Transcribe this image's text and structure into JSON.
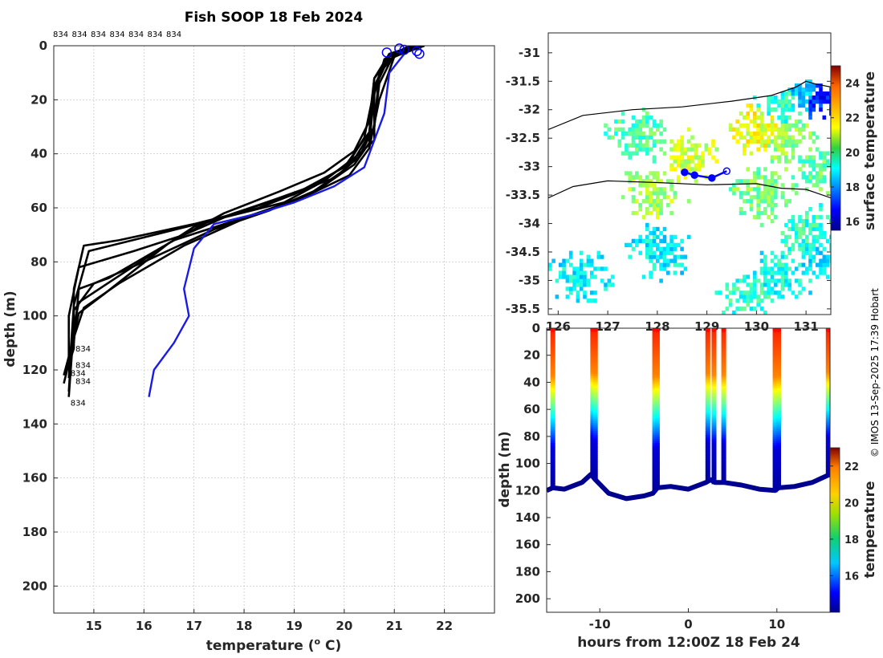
{
  "title": "Fish SOOP 18 Feb 2024",
  "credit": "© IMOS 13-Sep-2025 17:39 Hobart",
  "colors": {
    "profile": "#000000",
    "mean_profile": "#1a1ae6",
    "marker": "#0000ff"
  },
  "chart_data": [
    {
      "type": "line",
      "name": "temperature-profiles",
      "xlabel": "temperature (o C)",
      "xlabel_main": "temperature (",
      "xlabel_sup": "o",
      "xlabel_tail": " C)",
      "ylabel": "depth (m)",
      "xlim": [
        14.2,
        23.0
      ],
      "ylim": [
        210,
        0
      ],
      "xticks": [
        15,
        16,
        17,
        18,
        19,
        20,
        21,
        22
      ],
      "yticks": [
        0,
        20,
        40,
        60,
        80,
        100,
        120,
        140,
        160,
        180,
        200
      ],
      "grid": true,
      "top_labels": [
        "834",
        "834",
        "834",
        "834",
        "834",
        "834",
        "834"
      ],
      "bottom_labels": [
        {
          "text": "834",
          "temp": 14.6,
          "depth": 112
        },
        {
          "text": "834",
          "temp": 14.6,
          "depth": 118
        },
        {
          "text": "834",
          "temp": 14.5,
          "depth": 121
        },
        {
          "text": "834",
          "temp": 14.6,
          "depth": 124
        },
        {
          "text": "834",
          "temp": 14.5,
          "depth": 132
        }
      ],
      "surface_markers": [
        {
          "temp": 20.85,
          "depth": 2.5
        },
        {
          "temp": 21.1,
          "depth": 1
        },
        {
          "temp": 21.2,
          "depth": 1.5
        },
        {
          "temp": 21.45,
          "depth": 2
        },
        {
          "temp": 21.5,
          "depth": 3
        }
      ],
      "series": [
        {
          "name": "cast-1",
          "temp": [
            21.6,
            21.0,
            20.7,
            20.6,
            20.2,
            19.4,
            18.3,
            17.0,
            15.5,
            14.8,
            14.6,
            14.6,
            14.5
          ],
          "depth": [
            0,
            4,
            10,
            30,
            42,
            52,
            60,
            66,
            72,
            74,
            90,
            112,
            118
          ]
        },
        {
          "name": "cast-2",
          "temp": [
            21.5,
            20.9,
            20.6,
            20.5,
            20.0,
            19.0,
            17.8,
            16.8,
            15.8,
            14.7,
            14.5,
            14.5
          ],
          "depth": [
            0,
            5,
            12,
            32,
            45,
            55,
            62,
            70,
            76,
            82,
            100,
            120
          ]
        },
        {
          "name": "cast-3",
          "temp": [
            21.4,
            20.9,
            20.6,
            20.6,
            20.3,
            19.6,
            18.8,
            17.5,
            16.2,
            14.9,
            14.6,
            14.5
          ],
          "depth": [
            0,
            3,
            15,
            35,
            40,
            50,
            58,
            64,
            70,
            76,
            96,
            123
          ]
        },
        {
          "name": "cast-4",
          "temp": [
            21.5,
            21.0,
            20.7,
            20.5,
            20.1,
            19.2,
            18.1,
            16.6,
            15.3,
            14.7,
            14.6,
            14.4
          ],
          "depth": [
            0,
            4,
            20,
            38,
            48,
            56,
            63,
            72,
            86,
            90,
            110,
            125
          ]
        },
        {
          "name": "cast-5",
          "temp": [
            21.3,
            20.8,
            20.6,
            20.5,
            20.2,
            19.5,
            18.5,
            17.4,
            16.0,
            15.0,
            14.6,
            14.5
          ],
          "depth": [
            0,
            5,
            18,
            36,
            44,
            53,
            61,
            68,
            80,
            88,
            98,
            128
          ]
        },
        {
          "name": "cast-6",
          "temp": [
            21.6,
            21.0,
            20.7,
            20.6,
            20.3,
            19.8,
            18.6,
            17.0,
            15.6,
            14.7,
            14.6,
            14.5
          ],
          "depth": [
            0,
            3,
            14,
            30,
            41,
            49,
            57,
            67,
            84,
            95,
            104,
            130
          ]
        },
        {
          "name": "cast-7",
          "temp": [
            21.4,
            20.9,
            20.6,
            20.4,
            20.0,
            19.3,
            18.0,
            16.8,
            15.5,
            14.8,
            14.6,
            14.4
          ],
          "depth": [
            0,
            4,
            16,
            34,
            46,
            55,
            64,
            74,
            88,
            97,
            108,
            122
          ]
        },
        {
          "name": "cast-8",
          "temp": [
            21.5,
            20.9,
            20.6,
            20.5,
            20.2,
            19.6,
            18.7,
            17.6,
            16.5,
            15.2,
            14.7,
            14.5
          ],
          "depth": [
            0,
            3,
            12,
            28,
            39,
            47,
            54,
            62,
            73,
            92,
            99,
            116
          ]
        },
        {
          "name": "mean-profile",
          "temp": [
            21.2,
            20.9,
            20.8,
            20.6,
            20.4,
            19.8,
            19.0,
            18.3,
            17.4,
            17.0,
            16.8,
            16.9,
            16.6,
            16.2,
            16.1
          ],
          "depth": [
            3,
            10,
            25,
            35,
            45,
            52,
            58,
            62,
            66,
            75,
            90,
            100,
            110,
            120,
            130
          ]
        }
      ]
    },
    {
      "type": "heatmap",
      "name": "surface-temperature-map",
      "xlim": [
        125.8,
        131.5
      ],
      "ylim": [
        -35.6,
        -30.65
      ],
      "xticks": [
        126,
        127,
        128,
        129,
        130,
        131
      ],
      "yticks": [
        -31,
        -31.5,
        -32,
        -32.5,
        -33,
        -33.5,
        -34,
        -34.5,
        -35,
        -35.5
      ],
      "ytick_labels": [
        "-31",
        "-31.5",
        "-32",
        "-32.5",
        "-33",
        "-33.5",
        "-34",
        "-34.5",
        "-35",
        "-35.5"
      ],
      "colorbar_label": "surface temperature",
      "colorbar_range": [
        15.5,
        25
      ],
      "colorbar_ticks": [
        16,
        18,
        20,
        22,
        24
      ],
      "track": {
        "lon": [
          128.55,
          128.75,
          129.1,
          129.4
        ],
        "lat": [
          -33.1,
          -33.15,
          -33.2,
          -33.08
        ]
      },
      "coast_north": {
        "lon": [
          125.8,
          126.5,
          127.5,
          128.5,
          129.5,
          130.3,
          130.8,
          131.0,
          131.2,
          131.5
        ],
        "lat": [
          -32.35,
          -32.1,
          -32.0,
          -31.95,
          -31.85,
          -31.75,
          -31.6,
          -31.5,
          -31.55,
          -31.6
        ]
      },
      "coast_south": {
        "lon": [
          125.8,
          126.3,
          127.0,
          128.0,
          129.0,
          130.0,
          130.5,
          131.0,
          131.5
        ],
        "lat": [
          -33.55,
          -33.35,
          -33.25,
          -33.28,
          -33.32,
          -33.3,
          -33.38,
          -33.4,
          -33.55
        ]
      },
      "blobs": [
        {
          "lon": 130.5,
          "lat": -31.9,
          "temp": 19.5
        },
        {
          "lon": 130.9,
          "lat": -31.7,
          "temp": 18.5
        },
        {
          "lon": 131.3,
          "lat": -31.8,
          "temp": 17.0
        },
        {
          "lon": 130.0,
          "lat": -32.4,
          "temp": 21.2
        },
        {
          "lon": 130.6,
          "lat": -32.6,
          "temp": 20.4
        },
        {
          "lon": 131.2,
          "lat": -33.0,
          "temp": 20.0
        },
        {
          "lon": 128.6,
          "lat": -32.9,
          "temp": 21.0
        },
        {
          "lon": 127.9,
          "lat": -33.5,
          "temp": 20.6
        },
        {
          "lon": 127.6,
          "lat": -32.5,
          "temp": 19.8
        },
        {
          "lon": 130.1,
          "lat": -33.5,
          "temp": 20.2
        },
        {
          "lon": 131.0,
          "lat": -34.2,
          "temp": 19.5
        },
        {
          "lon": 128.0,
          "lat": -34.5,
          "temp": 19.0
        },
        {
          "lon": 126.4,
          "lat": -35.0,
          "temp": 19.0
        },
        {
          "lon": 130.4,
          "lat": -35.0,
          "temp": 19.2
        },
        {
          "lon": 129.9,
          "lat": -35.3,
          "temp": 19.5
        },
        {
          "lon": 131.3,
          "lat": -34.6,
          "temp": 19.0
        }
      ]
    },
    {
      "type": "scatter",
      "name": "depth-time-section",
      "xlabel": "hours from 12:00Z 18 Feb 24",
      "ylabel": "depth (m)",
      "xlim": [
        -16,
        16
      ],
      "ylim": [
        210,
        0
      ],
      "xticks": [
        -10,
        0,
        10
      ],
      "xtick_labels": [
        "-10",
        "0",
        "10"
      ],
      "yticks": [
        0,
        20,
        40,
        60,
        80,
        100,
        120,
        140,
        160,
        180,
        200
      ],
      "colorbar_label": "temperature",
      "colorbar_range": [
        14,
        23
      ],
      "colorbar_ticks": [
        16,
        18,
        20,
        22
      ],
      "casts": [
        {
          "hour": -15.3,
          "depth": 118
        },
        {
          "hour": -10.8,
          "depth": 108
        },
        {
          "hour": -10.5,
          "depth": 112
        },
        {
          "hour": -3.8,
          "depth": 120
        },
        {
          "hour": -3.5,
          "depth": 118
        },
        {
          "hour": 2.2,
          "depth": 112
        },
        {
          "hour": 2.9,
          "depth": 114
        },
        {
          "hour": 4.0,
          "depth": 114
        },
        {
          "hour": 9.8,
          "depth": 120
        },
        {
          "hour": 10.2,
          "depth": 118
        },
        {
          "hour": 15.8,
          "depth": 108
        }
      ],
      "bottom_track": {
        "hour": [
          -16,
          -15.3,
          -14,
          -12,
          -11,
          -10.5,
          -9,
          -7,
          -5,
          -4,
          -3.5,
          -2,
          0,
          2,
          2.5,
          3,
          4,
          6,
          8,
          9.8,
          10.2,
          12,
          14,
          16
        ],
        "depth": [
          120,
          118,
          119,
          114,
          108,
          112,
          122,
          126,
          124,
          122,
          118,
          117,
          119,
          114,
          112,
          114,
          114,
          116,
          119,
          120,
          118,
          117,
          114,
          108
        ]
      }
    }
  ]
}
